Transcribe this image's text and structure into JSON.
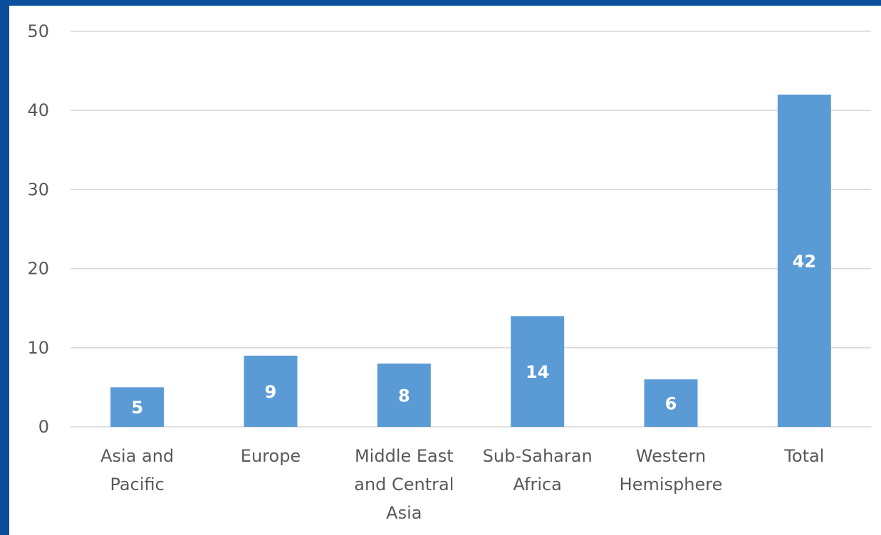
{
  "chart_data": {
    "type": "bar",
    "title": "",
    "xlabel": "",
    "ylabel": "",
    "categories": [
      [
        "Asia and",
        "Pacific"
      ],
      [
        "Europe"
      ],
      [
        "Middle East",
        "and Central",
        "Asia"
      ],
      [
        "Sub-Saharan",
        "Africa"
      ],
      [
        "Western",
        "Hemisphere"
      ],
      [
        "Total"
      ]
    ],
    "values": [
      5,
      9,
      8,
      14,
      6,
      42
    ],
    "data_labels": [
      "5",
      "9",
      "8",
      "14",
      "6",
      "42"
    ],
    "ylim": [
      0,
      50
    ],
    "yticks": [
      0,
      10,
      20,
      30,
      40,
      50
    ],
    "grid": true,
    "legend": "none"
  },
  "colors": {
    "bar": "#5b9bd5",
    "frame": "#0b4f9c",
    "gridline": "#d9d9d9",
    "axis_text": "#595959",
    "data_label": "#ffffff"
  }
}
